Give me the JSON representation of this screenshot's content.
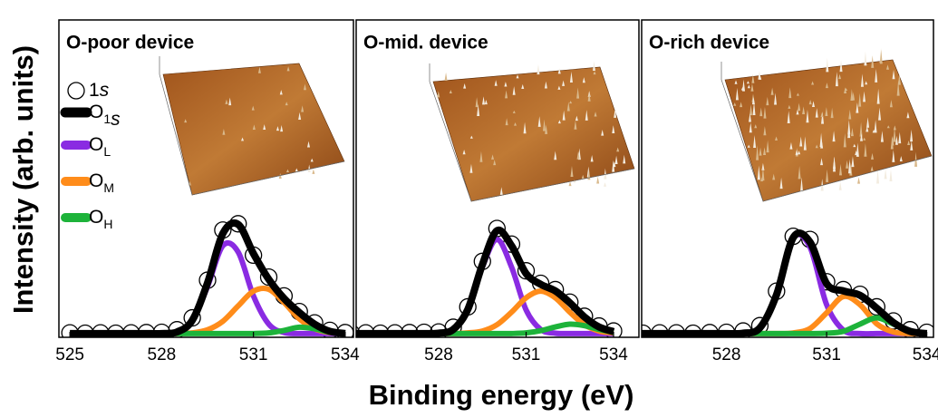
{
  "xlabel": "Binding energy (eV)",
  "ylabel": "Intensity (arb. units)",
  "chart_data": [
    {
      "type": "line",
      "title": "O-poor device",
      "legend": "upper left",
      "x": [
        525,
        525.5,
        526,
        526.5,
        527,
        527.5,
        528,
        528.5,
        529,
        529.5,
        530,
        530.5,
        531,
        531.5,
        532,
        532.5,
        533,
        533.5,
        534
      ],
      "xlim": [
        524.64,
        534.27
      ],
      "xticks": [
        525,
        528,
        531,
        534
      ],
      "ylim": [
        -0.012,
        1
      ],
      "series": [
        {
          "name": "1s",
          "color": "#000000",
          "style": "marker",
          "values": [
            0.002,
            0.001,
            0.002,
            0.001,
            0.002,
            0.003,
            0.004,
            0.012,
            0.05,
            0.17,
            0.33,
            0.35,
            0.25,
            0.18,
            0.12,
            0.07,
            0.034,
            0.01,
            0.003
          ]
        },
        {
          "name": "O1s",
          "color": "#000000",
          "style": "line",
          "values": [
            0,
            0,
            0,
            0,
            0,
            0,
            0,
            0.005,
            0.042,
            0.162,
            0.319,
            0.348,
            0.255,
            0.173,
            0.112,
            0.067,
            0.03,
            0.007,
            0
          ]
        },
        {
          "name": "OL",
          "color": "#8a2be2",
          "style": "line",
          "values": [
            0,
            0,
            0,
            0,
            0,
            0,
            0,
            0.005,
            0.04,
            0.15,
            0.28,
            0.26,
            0.12,
            0.03,
            0.003,
            0,
            0,
            0,
            0
          ]
        },
        {
          "name": "OM",
          "color": "#ff8c1a",
          "style": "line",
          "values": [
            0,
            0,
            0,
            0,
            0,
            0,
            0,
            0,
            0.002,
            0.012,
            0.039,
            0.088,
            0.135,
            0.141,
            0.099,
            0.047,
            0.015,
            0.003,
            0
          ]
        },
        {
          "name": "OH",
          "color": "#1db33a",
          "style": "line",
          "values": [
            0,
            0,
            0,
            0,
            0,
            0,
            0,
            0,
            0,
            0,
            0,
            0,
            0,
            0.002,
            0.01,
            0.02,
            0.015,
            0.004,
            0
          ]
        }
      ]
    },
    {
      "type": "line",
      "title": "O-mid. device",
      "x": [
        525,
        525.5,
        526,
        526.5,
        527,
        527.5,
        528,
        528.5,
        529,
        529.5,
        530,
        530.5,
        531,
        531.5,
        532,
        532.5,
        533,
        533.5,
        534
      ],
      "xlim": [
        525.17,
        534.87
      ],
      "xticks": [
        528,
        531,
        534
      ],
      "ylim": [
        -0.012,
        1
      ],
      "series": [
        {
          "color": "#000000",
          "style": "marker",
          "values": [
            0.002,
            0.002,
            0.001,
            0.002,
            0.003,
            0.004,
            0.005,
            0.02,
            0.085,
            0.23,
            0.335,
            0.285,
            0.2,
            0.16,
            0.14,
            0.1,
            0.055,
            0.024,
            0.008
          ]
        },
        {
          "color": "#000000",
          "style": "line",
          "values": [
            0,
            0,
            0,
            0,
            0,
            0,
            0.001,
            0.013,
            0.077,
            0.22,
            0.328,
            0.28,
            0.191,
            0.157,
            0.136,
            0.098,
            0.053,
            0.021,
            0.006
          ]
        },
        {
          "color": "#8a2be2",
          "style": "line",
          "values": [
            0,
            0,
            0,
            0,
            0,
            0,
            0.001,
            0.013,
            0.075,
            0.212,
            0.3,
            0.212,
            0.075,
            0.013,
            0.001,
            0,
            0,
            0,
            0
          ]
        },
        {
          "color": "#ff8c1a",
          "style": "line",
          "values": [
            0,
            0,
            0,
            0,
            0,
            0,
            0,
            0,
            0.002,
            0.008,
            0.028,
            0.068,
            0.114,
            0.135,
            0.114,
            0.068,
            0.028,
            0.008,
            0.002
          ]
        },
        {
          "color": "#1db33a",
          "style": "line",
          "values": [
            0,
            0,
            0,
            0,
            0,
            0,
            0,
            0,
            0,
            0,
            0,
            0,
            0.002,
            0.009,
            0.021,
            0.03,
            0.025,
            0.013,
            0.004
          ]
        }
      ]
    },
    {
      "type": "line",
      "title": "O-rich device",
      "x": [
        525,
        525.5,
        526,
        526.5,
        527,
        527.5,
        528,
        528.5,
        529,
        529.5,
        530,
        530.5,
        531,
        531.5,
        532,
        532.5,
        533,
        533.5,
        534
      ],
      "xlim": [
        525.46,
        534.2
      ],
      "xticks": [
        528,
        531,
        534
      ],
      "ylim": [
        -0.012,
        1
      ],
      "series": [
        {
          "color": "#000000",
          "style": "marker",
          "values": [
            0.002,
            0.001,
            0.002,
            0.002,
            0.001,
            0.003,
            0.004,
            0.008,
            0.025,
            0.135,
            0.31,
            0.3,
            0.165,
            0.14,
            0.125,
            0.085,
            0.04,
            0.012,
            0.004
          ]
        },
        {
          "color": "#000000",
          "style": "line",
          "values": [
            0,
            0,
            0,
            0,
            0,
            0,
            0,
            0.001,
            0.018,
            0.124,
            0.306,
            0.292,
            0.159,
            0.136,
            0.122,
            0.081,
            0.035,
            0.007,
            0
          ]
        },
        {
          "color": "#8a2be2",
          "style": "line",
          "values": [
            0,
            0,
            0,
            0,
            0,
            0,
            0,
            0.001,
            0.018,
            0.124,
            0.304,
            0.276,
            0.092,
            0.011,
            0,
            0,
            0,
            0,
            0
          ]
        },
        {
          "color": "#ff8c1a",
          "style": "line",
          "values": [
            0,
            0,
            0,
            0,
            0,
            0,
            0,
            0,
            0,
            0,
            0.002,
            0.016,
            0.066,
            0.118,
            0.092,
            0.031,
            0.005,
            0,
            0
          ]
        },
        {
          "color": "#1db33a",
          "style": "line",
          "values": [
            0,
            0,
            0,
            0,
            0,
            0,
            0,
            0,
            0,
            0,
            0,
            0,
            0.001,
            0.007,
            0.03,
            0.05,
            0.03,
            0.007,
            0
          ]
        }
      ]
    }
  ]
}
